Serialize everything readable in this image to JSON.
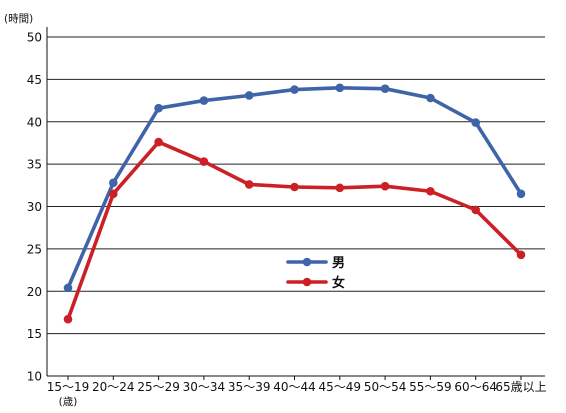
{
  "chart_data": {
    "type": "line",
    "title": "",
    "ylabel": "(時間)",
    "xlabel": "",
    "x_unit_label": "(歳)",
    "ylim": [
      10,
      50
    ],
    "yticks": [
      "10",
      "15",
      "20",
      "25",
      "30",
      "35",
      "40",
      "45",
      "50"
    ],
    "grid": true,
    "legend_position": "center",
    "categories": [
      "15〜19",
      "20〜24",
      "25〜29",
      "30〜34",
      "35〜39",
      "40〜44",
      "45〜49",
      "50〜54",
      "55〜59",
      "60〜64",
      "65歳以上"
    ],
    "series": [
      {
        "name": "男",
        "color": "#3f64a8",
        "values": [
          20.4,
          32.8,
          41.6,
          42.5,
          43.1,
          43.8,
          44.0,
          43.9,
          42.8,
          39.9,
          31.5
        ]
      },
      {
        "name": "女",
        "color": "#cc2027",
        "values": [
          16.7,
          31.5,
          37.6,
          35.3,
          32.6,
          32.3,
          32.2,
          32.4,
          31.8,
          29.6,
          24.3
        ]
      }
    ]
  }
}
